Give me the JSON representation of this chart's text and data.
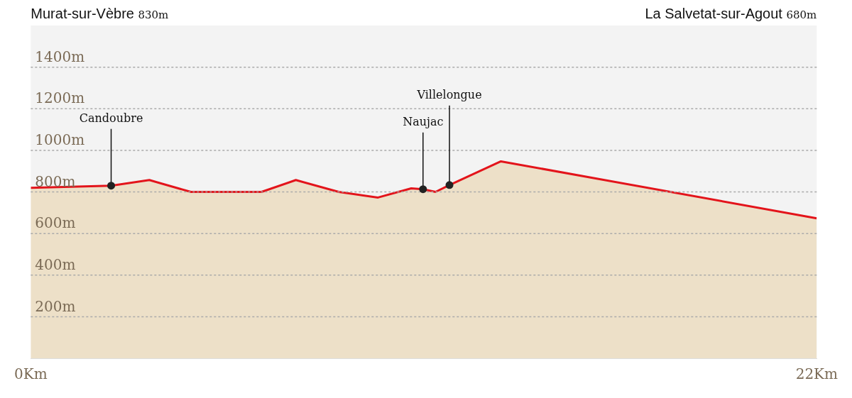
{
  "chart_data": {
    "type": "area",
    "x": [
      0,
      2.25,
      3.32,
      4.48,
      6.46,
      7.42,
      8.62,
      9.72,
      10.65,
      10.98,
      11.33,
      11.72,
      13.16,
      22
    ],
    "series": [
      {
        "color": "#e3141b",
        "values": [
          820,
          830,
          857,
          800,
          800,
          857,
          800,
          773,
          817,
          813,
          800,
          833,
          947,
          673
        ]
      }
    ],
    "xlim": [
      0,
      22
    ],
    "xticks": [
      {
        "value": 0,
        "label": "0Km"
      },
      {
        "value": 22,
        "label": "22Km"
      }
    ],
    "ylim": [
      0,
      1600
    ],
    "yticks": [
      {
        "value": 200,
        "label": "200m"
      },
      {
        "value": 400,
        "label": "400m"
      },
      {
        "value": 600,
        "label": "600m"
      },
      {
        "value": 800,
        "label": "800m"
      },
      {
        "value": 1000,
        "label": "1000m"
      },
      {
        "value": 1200,
        "label": "1200m"
      },
      {
        "value": 1400,
        "label": "1400m"
      }
    ],
    "grid": "y",
    "legend": false,
    "line_style": "solid",
    "marker": "none",
    "annotations": [
      "Murat-sur-Vèbre 830m",
      {
        "text": "Candoubre",
        "x": 2.25,
        "y": 830
      },
      {
        "text": "Naujac",
        "x": 10.98,
        "y": 813
      },
      {
        "text": "Villelongue",
        "x": 11.72,
        "y": 833
      },
      "La Salvetat-sur-Agout 680m"
    ]
  }
}
